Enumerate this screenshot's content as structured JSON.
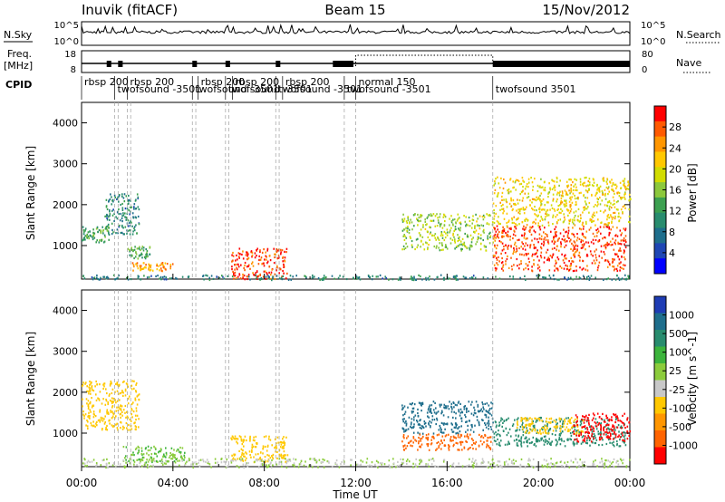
{
  "header": {
    "station": "Inuvik (fitACF)",
    "beam": "Beam 15",
    "date": "15/Nov/2012"
  },
  "summary_panels": {
    "nsky_label": "N.Sky",
    "nsky_ticks": [
      "10^5",
      "10^0"
    ],
    "nsearch_label": "N.Search",
    "nsearch_ticks": [
      "10^5",
      "10^0"
    ],
    "freq_label": "Freq.",
    "freq_unit": "[MHz]",
    "freq_ticks": [
      "18",
      "8"
    ],
    "nave_label": "Nave",
    "nave_ticks": [
      "80",
      "0"
    ],
    "cpid_label": "CPID",
    "cpid_segments": [
      {
        "label": "rbsp 200",
        "start_h": 0.0
      },
      {
        "label": "twofsound -3501",
        "start_h": 1.45
      },
      {
        "label": "rbsp 200",
        "start_h": 2.0
      },
      {
        "label": "twofsound -3501",
        "start_h": 4.85
      },
      {
        "label": "rbsp 200",
        "start_h": 5.1
      },
      {
        "label": "twofsound -3501",
        "start_h": 6.3
      },
      {
        "label": "rbsp 200",
        "start_h": 6.6
      },
      {
        "label": "twofsound -3501",
        "start_h": 8.5
      },
      {
        "label": "rbsp 200",
        "start_h": 8.8
      },
      {
        "label": "twofsound -3501",
        "start_h": 11.5
      },
      {
        "label": "normal 150",
        "start_h": 12.0
      },
      {
        "label": "twofsound 3501",
        "start_h": 18.0
      }
    ]
  },
  "colorbars": {
    "power": {
      "label": "Power [dB]",
      "ticks": [
        "28",
        "24",
        "20",
        "16",
        "12",
        "8",
        "4"
      ],
      "colors": [
        "#ff0000",
        "#ff5a00",
        "#ff9600",
        "#ffc800",
        "#d2dc00",
        "#8cc83c",
        "#3ca050",
        "#288c6e",
        "#1e6e8c",
        "#1e46b4",
        "#0000ff"
      ]
    },
    "velocity": {
      "label": "Velocity [m s^-1]",
      "ticks": [
        "1000",
        "500",
        "100",
        "25",
        "-25",
        "-100",
        "-500",
        "-1000"
      ],
      "colors": [
        "#1e3cb4",
        "#1e6e8c",
        "#288c6e",
        "#3cb43c",
        "#8ccc3c",
        "#c8c8c8",
        "#ffc800",
        "#ff9600",
        "#ff6400",
        "#ff0000"
      ]
    }
  },
  "chart_data": [
    {
      "type": "heatmap",
      "panel": "power",
      "xlabel": "Time UT",
      "ylabel": "Slant Range [km]",
      "xlim_hours": [
        0,
        24
      ],
      "ylim_km": [
        180,
        4500
      ],
      "y_ticks": [
        "1000",
        "2000",
        "3000",
        "4000"
      ],
      "x_ticks": [
        "00:00",
        "04:00",
        "08:00",
        "12:00",
        "16:00",
        "20:00",
        "00:00"
      ],
      "mode_change_lines_h": [
        1.45,
        1.6,
        2.0,
        2.15,
        4.85,
        5.0,
        6.3,
        6.45,
        8.5,
        8.65,
        11.5,
        12.0,
        18.0
      ],
      "regions": [
        {
          "t0": 0.0,
          "t1": 1.2,
          "r0": 1100,
          "r1": 1500,
          "value_db": 12
        },
        {
          "t0": 1.0,
          "t1": 2.5,
          "r0": 1300,
          "r1": 2300,
          "value_db": 8
        },
        {
          "t0": 2.2,
          "t1": 4.0,
          "r0": 400,
          "r1": 600,
          "value_db": 24
        },
        {
          "t0": 2.0,
          "t1": 3.0,
          "r0": 700,
          "r1": 1000,
          "value_db": 12
        },
        {
          "t0": 6.5,
          "t1": 9.0,
          "r0": 200,
          "r1": 950,
          "value_db": 28
        },
        {
          "t0": 14.0,
          "t1": 18.0,
          "r0": 900,
          "r1": 1800,
          "value_db": 16
        },
        {
          "t0": 18.0,
          "t1": 23.8,
          "r0": 400,
          "r1": 1500,
          "value_db": 28
        },
        {
          "t0": 18.0,
          "t1": 24.0,
          "r0": 1500,
          "r1": 2700,
          "value_db": 20
        },
        {
          "t0": 0.0,
          "t1": 24.0,
          "r0": 180,
          "r1": 300,
          "value_db": 8
        }
      ]
    },
    {
      "type": "heatmap",
      "panel": "velocity",
      "xlabel": "Time UT",
      "ylabel": "Slant Range [km]",
      "xlim_hours": [
        0,
        24
      ],
      "ylim_km": [
        180,
        4500
      ],
      "y_ticks": [
        "1000",
        "2000",
        "3000",
        "4000"
      ],
      "x_ticks": [
        "00:00",
        "04:00",
        "08:00",
        "12:00",
        "16:00",
        "20:00",
        "00:00"
      ],
      "mode_change_lines_h": [
        1.45,
        1.6,
        2.0,
        2.15,
        4.85,
        5.0,
        6.3,
        6.45,
        8.5,
        8.65,
        11.5,
        12.0,
        18.0
      ],
      "regions": [
        {
          "t0": 0.0,
          "t1": 2.5,
          "r0": 1100,
          "r1": 2300,
          "value_ms": 0
        },
        {
          "t0": 1.8,
          "t1": 4.5,
          "r0": 300,
          "r1": 700,
          "value_ms": 100
        },
        {
          "t0": 6.5,
          "t1": 9.0,
          "r0": 300,
          "r1": 950,
          "value_ms": 0
        },
        {
          "t0": 14.0,
          "t1": 18.0,
          "r0": 1000,
          "r1": 1800,
          "value_ms": 800
        },
        {
          "t0": 14.0,
          "t1": 18.0,
          "r0": 600,
          "r1": 1000,
          "value_ms": -300
        },
        {
          "t0": 18.0,
          "t1": 23.8,
          "r0": 700,
          "r1": 1400,
          "value_ms": 300
        },
        {
          "t0": 19.0,
          "t1": 22.0,
          "r0": 1000,
          "r1": 1400,
          "value_ms": 0
        },
        {
          "t0": 21.5,
          "t1": 24.0,
          "r0": 800,
          "r1": 1500,
          "value_ms": -600
        },
        {
          "t0": 0.0,
          "t1": 24.0,
          "r0": 180,
          "r1": 400,
          "value_ms": 50
        }
      ]
    }
  ]
}
